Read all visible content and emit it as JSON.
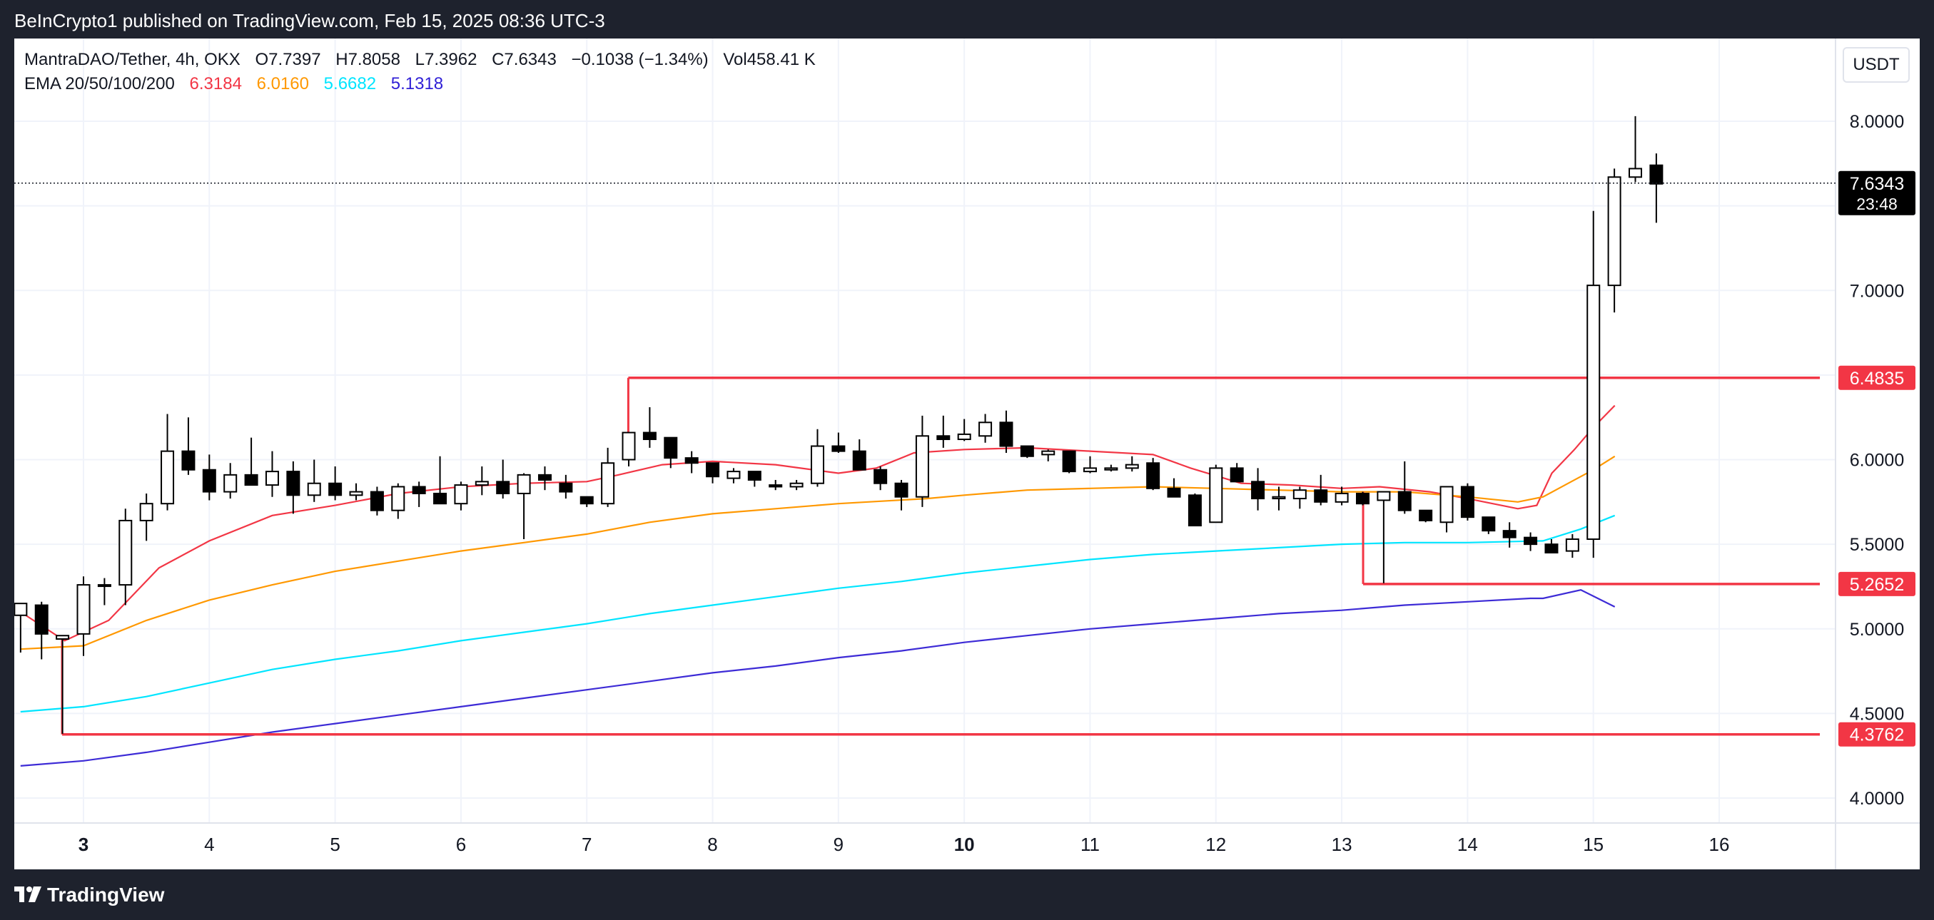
{
  "publisher_line": "BeInCrypto1 published on TradingView.com, Feb 15, 2025 08:36 UTC-3",
  "brand": "TradingView",
  "legend": {
    "symbol": "MantraDAO/Tether, 4h, OKX",
    "open": "O7.7397",
    "high": "H7.8058",
    "low": "L7.3962",
    "close": "C7.6343",
    "change": "−0.1038 (−1.34%)",
    "volume": "Vol458.41 K",
    "ema_label": "EMA 20/50/100/200",
    "ema_values": [
      "6.3184",
      "6.0160",
      "5.6682",
      "5.1318"
    ]
  },
  "currency_button": "USDT",
  "colors": {
    "ema20": "#f23645",
    "ema50": "#ff9800",
    "ema100": "#00e5ff",
    "ema200": "#3d2bd6",
    "level_line": "#f23645",
    "candle_up_fill": "#ffffff",
    "candle_down_fill": "#000000",
    "candle_outline": "#000000"
  },
  "chart_data": {
    "type": "candlestick",
    "title": "MantraDAO/Tether, 4h, OKX",
    "ylim": [
      3.74,
      8.32
    ],
    "y_ticks": [
      "4.0000",
      "4.5000",
      "5.0000",
      "5.5000",
      "6.0000",
      "6.5000",
      "7.0000",
      "7.5000",
      "8.0000"
    ],
    "x_ticks": [
      {
        "t": 3.0,
        "label": "3",
        "bold": true
      },
      {
        "t": 4.0,
        "label": "4",
        "bold": false
      },
      {
        "t": 5.0,
        "label": "5",
        "bold": false
      },
      {
        "t": 6.0,
        "label": "6",
        "bold": false
      },
      {
        "t": 7.0,
        "label": "7",
        "bold": false
      },
      {
        "t": 8.0,
        "label": "8",
        "bold": false
      },
      {
        "t": 9.0,
        "label": "9",
        "bold": false
      },
      {
        "t": 10.0,
        "label": "10",
        "bold": true
      },
      {
        "t": 11.0,
        "label": "11",
        "bold": false
      },
      {
        "t": 12.0,
        "label": "12",
        "bold": false
      },
      {
        "t": 13.0,
        "label": "13",
        "bold": false
      },
      {
        "t": 14.0,
        "label": "14",
        "bold": false
      },
      {
        "t": 15.0,
        "label": "15",
        "bold": false
      },
      {
        "t": 16.0,
        "label": "16",
        "bold": false
      }
    ],
    "x_range": [
      2.45,
      16.8
    ],
    "candle_interval_days": 0.16667,
    "first_candle_t": 2.5,
    "candles": [
      [
        5.08,
        5.15,
        4.86,
        5.15
      ],
      [
        5.14,
        5.16,
        4.82,
        4.97
      ],
      [
        4.94,
        4.96,
        4.38,
        4.96
      ],
      [
        4.97,
        5.31,
        4.84,
        5.26
      ],
      [
        5.26,
        5.3,
        5.14,
        5.26
      ],
      [
        5.26,
        5.71,
        5.14,
        5.64
      ],
      [
        5.64,
        5.8,
        5.52,
        5.74
      ],
      [
        5.74,
        6.27,
        5.7,
        6.05
      ],
      [
        6.05,
        6.25,
        5.91,
        5.94
      ],
      [
        5.94,
        6.03,
        5.76,
        5.81
      ],
      [
        5.81,
        5.98,
        5.77,
        5.91
      ],
      [
        5.91,
        6.13,
        5.87,
        5.85
      ],
      [
        5.85,
        6.05,
        5.78,
        5.93
      ],
      [
        5.93,
        5.99,
        5.68,
        5.79
      ],
      [
        5.79,
        6.0,
        5.75,
        5.86
      ],
      [
        5.86,
        5.96,
        5.76,
        5.79
      ],
      [
        5.79,
        5.86,
        5.76,
        5.81
      ],
      [
        5.81,
        5.84,
        5.67,
        5.7
      ],
      [
        5.7,
        5.86,
        5.65,
        5.84
      ],
      [
        5.84,
        5.87,
        5.72,
        5.8
      ],
      [
        5.8,
        6.02,
        5.74,
        5.74
      ],
      [
        5.74,
        5.87,
        5.7,
        5.85
      ],
      [
        5.85,
        5.96,
        5.79,
        5.87
      ],
      [
        5.87,
        6.0,
        5.77,
        5.8
      ],
      [
        5.8,
        5.92,
        5.53,
        5.91
      ],
      [
        5.91,
        5.96,
        5.82,
        5.88
      ],
      [
        5.86,
        5.91,
        5.77,
        5.81
      ],
      [
        5.78,
        5.78,
        5.72,
        5.74
      ],
      [
        5.74,
        6.07,
        5.72,
        5.98
      ],
      [
        6.0,
        6.15,
        5.96,
        6.16
      ],
      [
        6.16,
        6.31,
        6.07,
        6.12
      ],
      [
        6.13,
        6.13,
        5.95,
        6.01
      ],
      [
        6.01,
        6.05,
        5.92,
        5.98
      ],
      [
        5.98,
        5.96,
        5.86,
        5.9
      ],
      [
        5.89,
        5.95,
        5.86,
        5.93
      ],
      [
        5.93,
        5.92,
        5.84,
        5.88
      ],
      [
        5.85,
        5.88,
        5.82,
        5.84
      ],
      [
        5.84,
        5.88,
        5.82,
        5.86
      ],
      [
        5.86,
        6.18,
        5.84,
        6.08
      ],
      [
        6.08,
        6.16,
        6.04,
        6.05
      ],
      [
        6.05,
        6.12,
        5.95,
        5.94
      ],
      [
        5.94,
        5.96,
        5.82,
        5.86
      ],
      [
        5.86,
        5.88,
        5.7,
        5.78
      ],
      [
        5.78,
        6.26,
        5.72,
        6.14
      ],
      [
        6.14,
        6.26,
        6.07,
        6.12
      ],
      [
        6.12,
        6.24,
        6.11,
        6.15
      ],
      [
        6.14,
        6.27,
        6.1,
        6.22
      ],
      [
        6.22,
        6.29,
        6.04,
        6.08
      ],
      [
        6.08,
        6.07,
        6.01,
        6.02
      ],
      [
        6.03,
        6.06,
        5.99,
        6.05
      ],
      [
        6.05,
        6.02,
        5.92,
        5.93
      ],
      [
        5.93,
        6.02,
        5.92,
        5.95
      ],
      [
        5.94,
        5.97,
        5.93,
        5.95
      ],
      [
        5.95,
        6.02,
        5.93,
        5.97
      ],
      [
        5.98,
        6.01,
        5.82,
        5.83
      ],
      [
        5.83,
        5.89,
        5.82,
        5.78
      ],
      [
        5.79,
        5.8,
        5.61,
        5.61
      ],
      [
        5.63,
        5.97,
        5.63,
        5.95
      ],
      [
        5.95,
        5.98,
        5.87,
        5.87
      ],
      [
        5.87,
        5.95,
        5.7,
        5.77
      ],
      [
        5.77,
        5.84,
        5.7,
        5.78
      ],
      [
        5.77,
        5.84,
        5.71,
        5.82
      ],
      [
        5.82,
        5.91,
        5.73,
        5.75
      ],
      [
        5.75,
        5.84,
        5.73,
        5.8
      ],
      [
        5.8,
        5.81,
        5.73,
        5.74
      ],
      [
        5.76,
        5.81,
        5.27,
        5.81
      ],
      [
        5.81,
        5.99,
        5.68,
        5.7
      ],
      [
        5.7,
        5.7,
        5.63,
        5.64
      ],
      [
        5.63,
        5.84,
        5.57,
        5.84
      ],
      [
        5.84,
        5.86,
        5.64,
        5.66
      ],
      [
        5.66,
        5.63,
        5.56,
        5.58
      ],
      [
        5.58,
        5.63,
        5.48,
        5.54
      ],
      [
        5.54,
        5.57,
        5.46,
        5.5
      ],
      [
        5.5,
        5.53,
        5.46,
        5.45
      ],
      [
        5.46,
        5.56,
        5.42,
        5.53
      ],
      [
        5.53,
        7.47,
        5.42,
        7.03
      ],
      [
        7.03,
        7.72,
        6.87,
        7.67
      ],
      [
        7.67,
        8.03,
        7.64,
        7.72
      ],
      [
        7.74,
        7.81,
        7.4,
        7.63
      ]
    ],
    "series": [
      {
        "name": "EMA 20",
        "color_key": "ema20",
        "values": [
          [
            2.5,
            5.1
          ],
          [
            2.85,
            4.93
          ],
          [
            3.2,
            5.05
          ],
          [
            3.6,
            5.36
          ],
          [
            4.0,
            5.52
          ],
          [
            4.5,
            5.67
          ],
          [
            5.0,
            5.73
          ],
          [
            5.5,
            5.8
          ],
          [
            6.0,
            5.84
          ],
          [
            6.5,
            5.86
          ],
          [
            7.0,
            5.87
          ],
          [
            7.25,
            5.91
          ],
          [
            7.6,
            5.97
          ],
          [
            8.0,
            5.99
          ],
          [
            8.5,
            5.97
          ],
          [
            9.0,
            5.92
          ],
          [
            9.3,
            5.95
          ],
          [
            9.6,
            6.04
          ],
          [
            10.0,
            6.06
          ],
          [
            10.5,
            6.07
          ],
          [
            11.0,
            6.05
          ],
          [
            11.5,
            6.03
          ],
          [
            11.8,
            5.95
          ],
          [
            12.2,
            5.86
          ],
          [
            12.6,
            5.85
          ],
          [
            13.0,
            5.83
          ],
          [
            13.3,
            5.84
          ],
          [
            13.7,
            5.81
          ],
          [
            14.0,
            5.77
          ],
          [
            14.4,
            5.71
          ],
          [
            14.55,
            5.73
          ],
          [
            14.67,
            5.92
          ],
          [
            14.85,
            6.06
          ],
          [
            15.0,
            6.19
          ],
          [
            15.17,
            6.32
          ]
        ]
      },
      {
        "name": "EMA 50",
        "color_key": "ema50",
        "values": [
          [
            2.5,
            4.88
          ],
          [
            3.0,
            4.9
          ],
          [
            3.5,
            5.05
          ],
          [
            4.0,
            5.17
          ],
          [
            4.5,
            5.26
          ],
          [
            5.0,
            5.34
          ],
          [
            5.5,
            5.4
          ],
          [
            6.0,
            5.46
          ],
          [
            6.5,
            5.51
          ],
          [
            7.0,
            5.56
          ],
          [
            7.5,
            5.63
          ],
          [
            8.0,
            5.68
          ],
          [
            8.5,
            5.71
          ],
          [
            9.0,
            5.74
          ],
          [
            9.7,
            5.77
          ],
          [
            10.0,
            5.79
          ],
          [
            10.5,
            5.82
          ],
          [
            11.0,
            5.83
          ],
          [
            11.5,
            5.84
          ],
          [
            12.0,
            5.83
          ],
          [
            12.5,
            5.82
          ],
          [
            13.0,
            5.81
          ],
          [
            13.5,
            5.81
          ],
          [
            14.0,
            5.78
          ],
          [
            14.4,
            5.75
          ],
          [
            14.6,
            5.78
          ],
          [
            14.8,
            5.86
          ],
          [
            15.0,
            5.94
          ],
          [
            15.17,
            6.02
          ]
        ]
      },
      {
        "name": "EMA 100",
        "color_key": "ema100",
        "values": [
          [
            2.5,
            4.51
          ],
          [
            3.0,
            4.54
          ],
          [
            3.5,
            4.6
          ],
          [
            4.0,
            4.68
          ],
          [
            4.5,
            4.76
          ],
          [
            5.0,
            4.82
          ],
          [
            5.5,
            4.87
          ],
          [
            6.0,
            4.93
          ],
          [
            6.5,
            4.98
          ],
          [
            7.0,
            5.03
          ],
          [
            7.5,
            5.09
          ],
          [
            8.0,
            5.14
          ],
          [
            8.5,
            5.19
          ],
          [
            9.0,
            5.24
          ],
          [
            9.5,
            5.28
          ],
          [
            10.0,
            5.33
          ],
          [
            10.5,
            5.37
          ],
          [
            11.0,
            5.41
          ],
          [
            11.5,
            5.44
          ],
          [
            12.0,
            5.46
          ],
          [
            12.5,
            5.48
          ],
          [
            13.0,
            5.5
          ],
          [
            13.5,
            5.51
          ],
          [
            14.0,
            5.51
          ],
          [
            14.6,
            5.52
          ],
          [
            14.9,
            5.59
          ],
          [
            15.17,
            5.67
          ]
        ]
      },
      {
        "name": "EMA 200",
        "color_key": "ema200",
        "values": [
          [
            2.5,
            4.19
          ],
          [
            3.0,
            4.22
          ],
          [
            3.5,
            4.27
          ],
          [
            4.0,
            4.33
          ],
          [
            4.5,
            4.39
          ],
          [
            5.0,
            4.44
          ],
          [
            5.5,
            4.49
          ],
          [
            6.0,
            4.54
          ],
          [
            6.5,
            4.59
          ],
          [
            7.0,
            4.64
          ],
          [
            7.5,
            4.69
          ],
          [
            8.0,
            4.74
          ],
          [
            8.5,
            4.78
          ],
          [
            9.0,
            4.83
          ],
          [
            9.5,
            4.87
          ],
          [
            10.0,
            4.92
          ],
          [
            10.5,
            4.96
          ],
          [
            11.0,
            5.0
          ],
          [
            11.5,
            5.03
          ],
          [
            12.0,
            5.06
          ],
          [
            12.5,
            5.09
          ],
          [
            13.0,
            5.11
          ],
          [
            13.5,
            5.14
          ],
          [
            14.0,
            5.16
          ],
          [
            14.5,
            5.18
          ],
          [
            14.6,
            5.18
          ],
          [
            14.9,
            5.23
          ],
          [
            15.17,
            5.13
          ]
        ]
      }
    ],
    "levels": [
      {
        "value": 6.4835,
        "label": "6.4835",
        "t_start": 7.33,
        "t_end": 16.8,
        "bracket_to": 6.16
      },
      {
        "value": 5.2652,
        "label": "5.2652",
        "t_start": 13.17,
        "t_end": 16.8,
        "bracket_to": 5.81
      },
      {
        "value": 4.3762,
        "label": "4.3762",
        "t_start": 2.83,
        "t_end": 16.8,
        "bracket_to": 4.95
      }
    ],
    "last_price": {
      "value": 7.6343,
      "label": "7.6343",
      "countdown": "23:48"
    }
  }
}
